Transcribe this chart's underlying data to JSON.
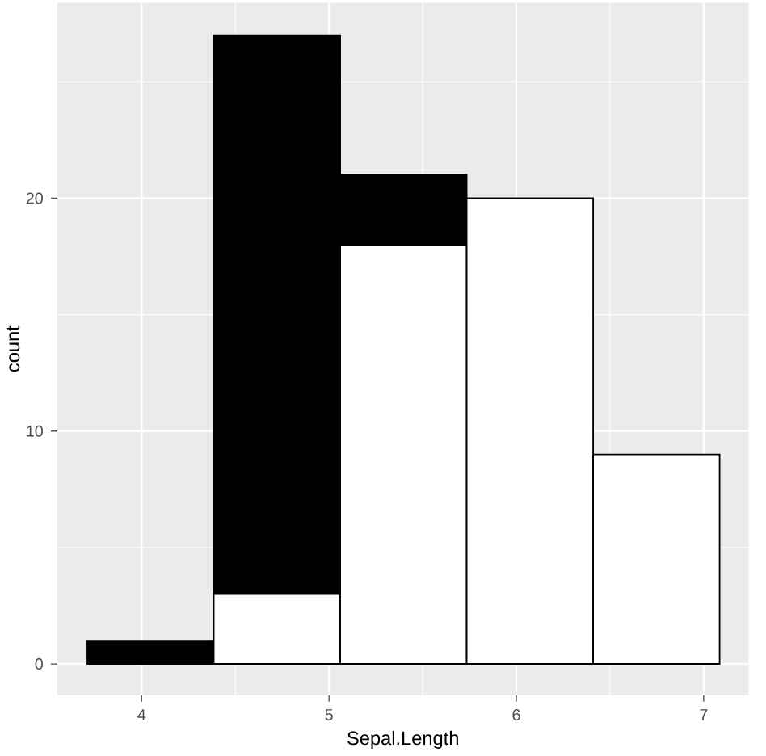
{
  "chart_data": {
    "type": "histogram",
    "xlabel": "Sepal.Length",
    "ylabel": "count",
    "bins": [
      3.71,
      4.385,
      5.06,
      5.735,
      6.41,
      7.085
    ],
    "series": [
      {
        "color": "#000000",
        "values": [
          1,
          27,
          21,
          null,
          null
        ]
      },
      {
        "color": "#ffffff",
        "values": [
          null,
          3,
          18,
          20,
          9
        ]
      }
    ],
    "xlim": [
      3.55,
      7.24
    ],
    "ylim": [
      -1.35,
      28.4
    ],
    "xticks": [
      4,
      5,
      6,
      7
    ],
    "yticks": [
      0,
      10,
      20
    ],
    "grid": true
  }
}
